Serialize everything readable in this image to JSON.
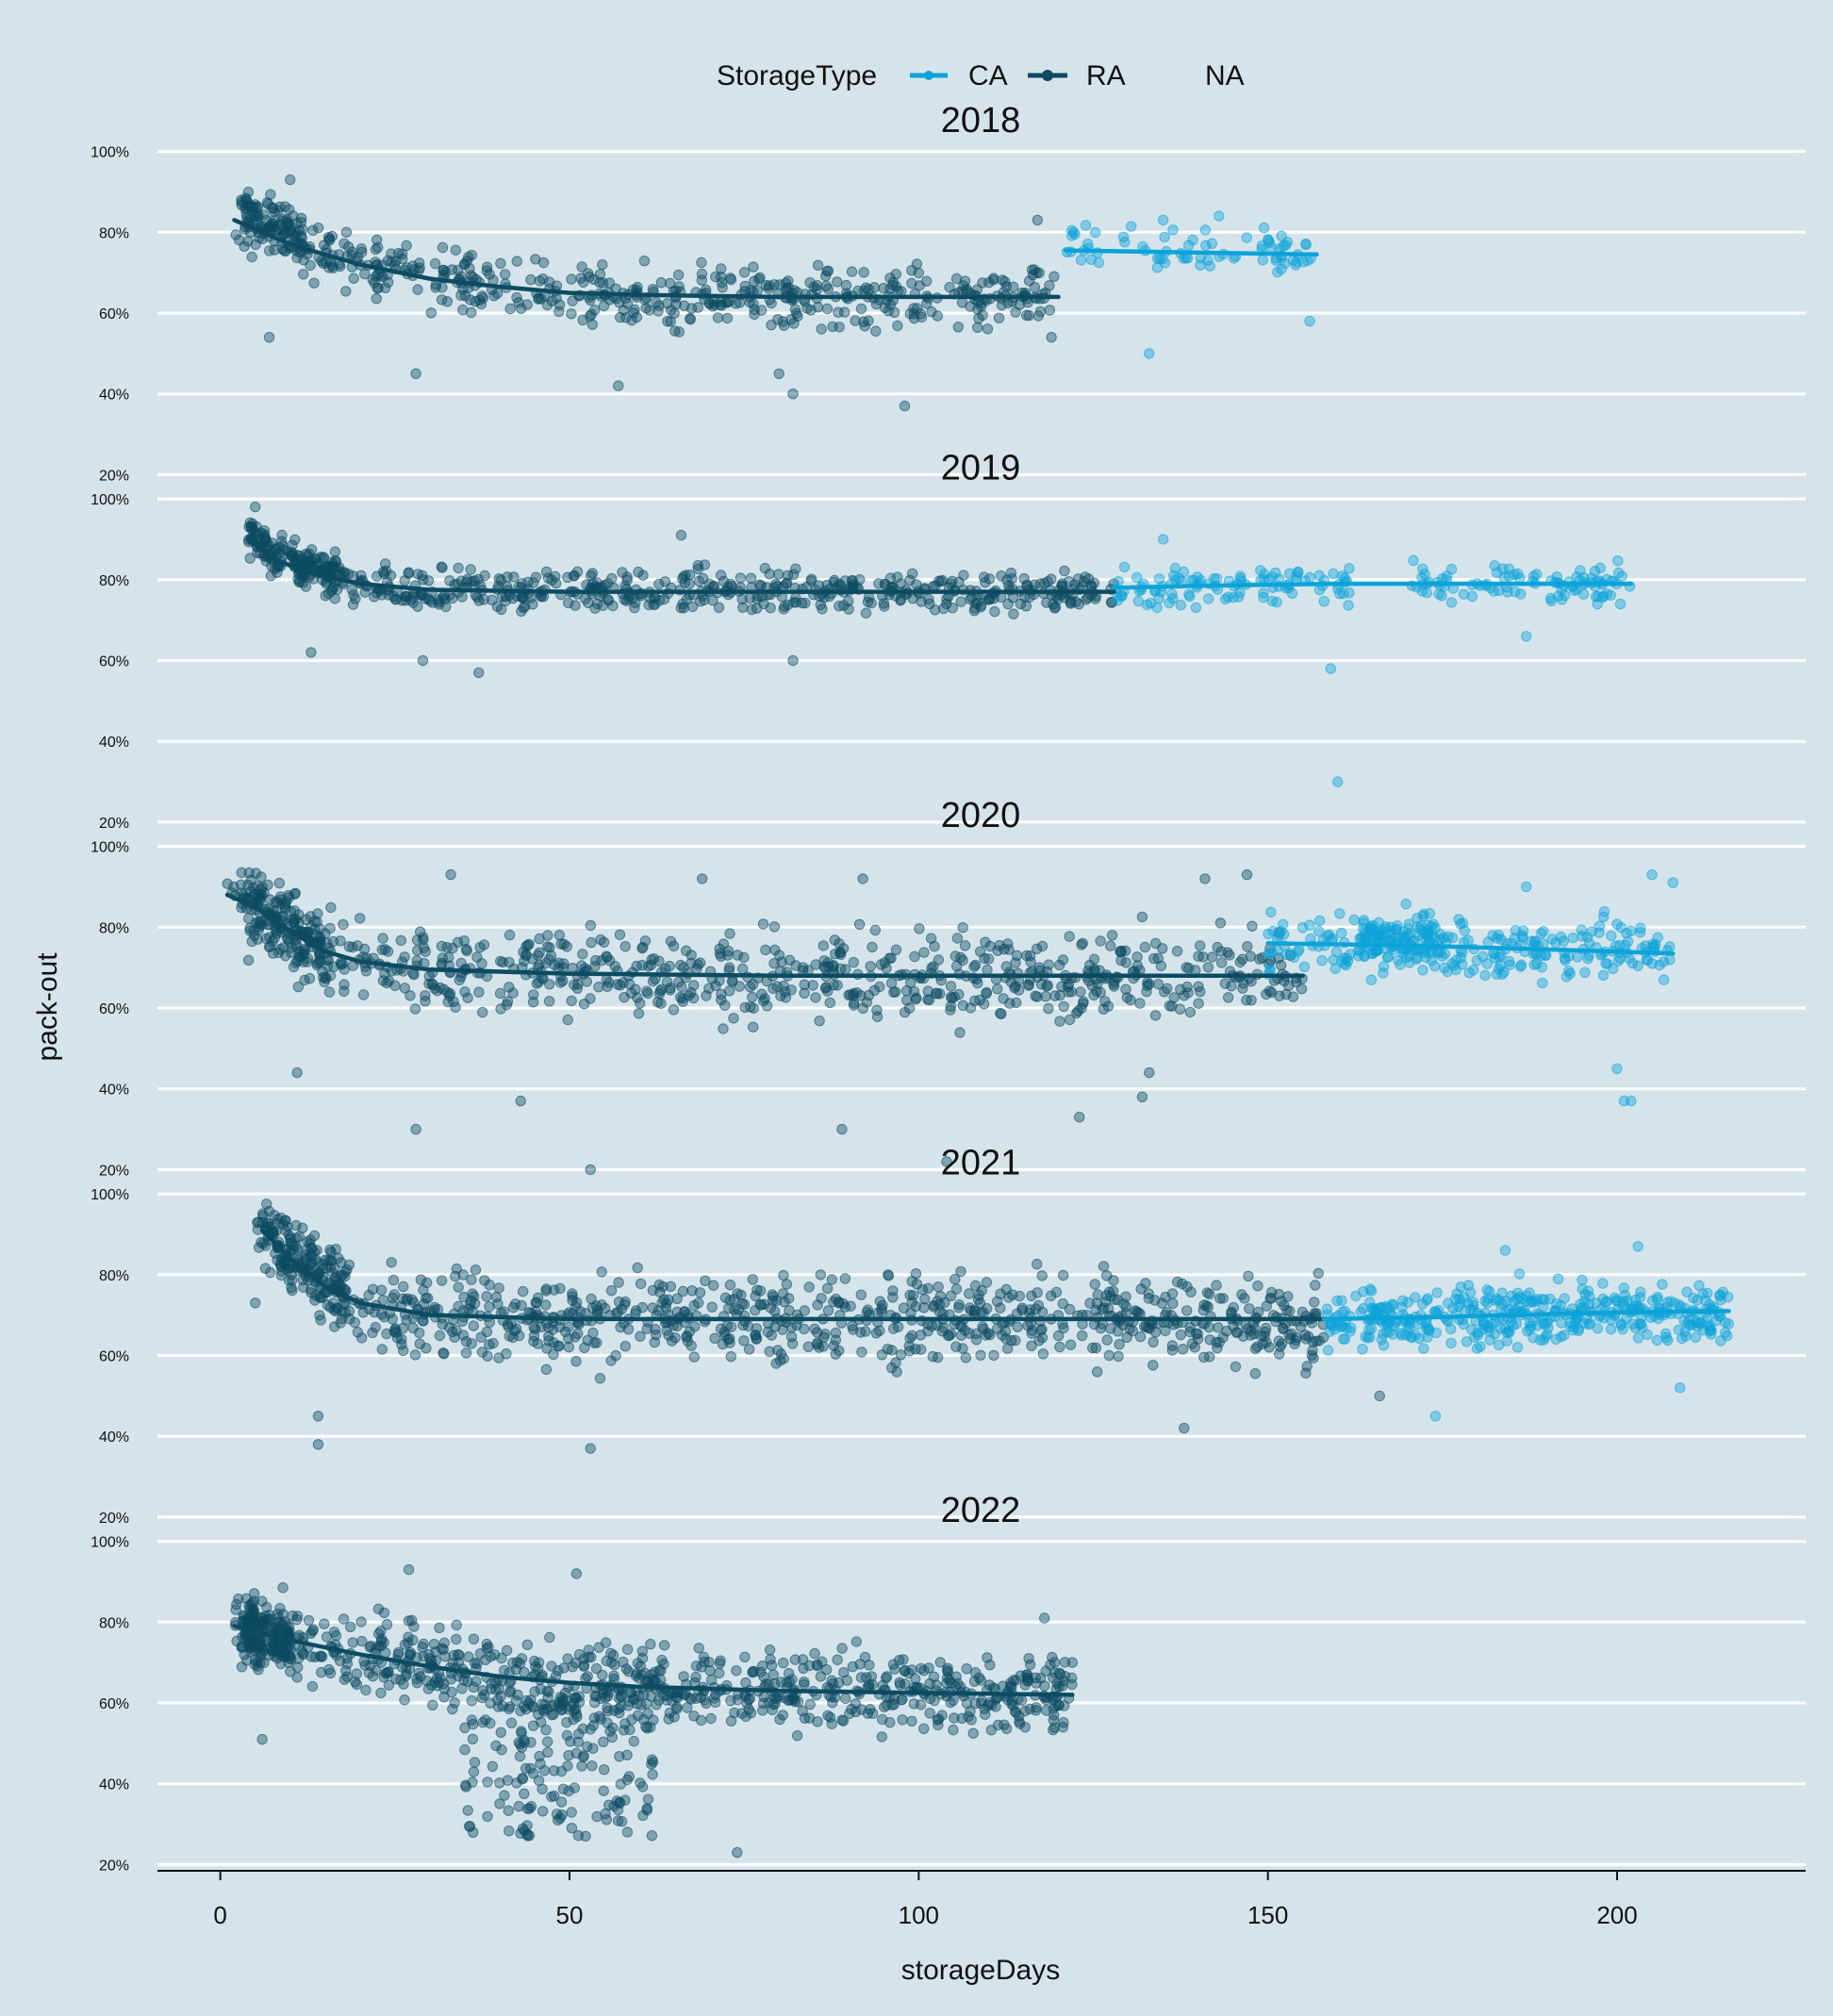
{
  "chart_data": {
    "type": "scatter",
    "legend": {
      "title": "StorageType",
      "placement": "top",
      "entries": [
        {
          "label": "CA",
          "color": "#0ba3d8"
        },
        {
          "label": "RA",
          "color": "#0c4b61"
        },
        {
          "label": "NA",
          "color": "none"
        }
      ]
    },
    "xlabel": "storageDays",
    "ylabel": "pack-out",
    "xlim": [
      -9,
      227
    ],
    "x_ticks": [
      0,
      50,
      100,
      150,
      200
    ],
    "x_tick_labels": [
      "0",
      "50",
      "100",
      "150",
      "200"
    ],
    "ylim": [
      0.18,
      1.02
    ],
    "y_ticks": [
      0.2,
      0.4,
      0.6,
      0.8,
      1.0
    ],
    "y_tick_labels": [
      "20%",
      "40%",
      "60%",
      "80%",
      "100%"
    ],
    "grid": {
      "horizontal": true,
      "vertical": false
    },
    "colors": {
      "background": "#d5e4eb",
      "grid": "#ffffff",
      "CA": "#0ba3d8",
      "RA": "#0c4b61"
    },
    "panels": [
      {
        "title": "2018",
        "series": [
          {
            "name": "RA",
            "x_range": [
              2,
              120
            ],
            "trend": [
              [
                2,
                0.83
              ],
              [
                10,
                0.77
              ],
              [
                20,
                0.72
              ],
              [
                30,
                0.685
              ],
              [
                40,
                0.665
              ],
              [
                50,
                0.65
              ],
              [
                60,
                0.645
              ],
              [
                80,
                0.64
              ],
              [
                100,
                0.64
              ],
              [
                120,
                0.64
              ]
            ],
            "scatter": {
              "n": 520,
              "spread": 0.075,
              "mode": "uniform",
              "cluster_x": [
                3,
                12
              ],
              "cluster_n": 90,
              "cluster_trend_offset": 0.03,
              "extra": [
                [
                  7,
                  0.54
                ],
                [
                  10,
                  0.93
                ],
                [
                  57,
                  0.42
                ],
                [
                  80,
                  0.45
                ],
                [
                  82,
                  0.4
                ],
                [
                  98,
                  0.37
                ],
                [
                  28,
                  0.45
                ],
                [
                  117,
                  0.83
                ],
                [
                  119,
                  0.54
                ]
              ]
            }
          },
          {
            "name": "CA",
            "x_range": [
              121,
              157
            ],
            "trend": [
              [
                121,
                0.755
              ],
              [
                157,
                0.745
              ]
            ],
            "scatter": {
              "n": 75,
              "spread": 0.06,
              "mode": "uniform",
              "extra": [
                [
                  133,
                  0.5
                ],
                [
                  143,
                  0.84
                ],
                [
                  156,
                  0.58
                ],
                [
                  135,
                  0.83
                ]
              ]
            }
          }
        ]
      },
      {
        "title": "2019",
        "series": [
          {
            "name": "RA",
            "x_range": [
              4,
              128
            ],
            "trend": [
              [
                4,
                0.9
              ],
              [
                8,
                0.85
              ],
              [
                12,
                0.82
              ],
              [
                20,
                0.79
              ],
              [
                30,
                0.775
              ],
              [
                50,
                0.77
              ],
              [
                70,
                0.77
              ],
              [
                100,
                0.77
              ],
              [
                128,
                0.77
              ]
            ],
            "scatter": {
              "n": 560,
              "spread": 0.055,
              "mode": "uniform",
              "cluster_x": [
                4,
                18
              ],
              "cluster_n": 120,
              "cluster_trend_offset": 0.02,
              "extra": [
                [
                  5,
                  0.98
                ],
                [
                  37,
                  0.57
                ],
                [
                  29,
                  0.6
                ],
                [
                  82,
                  0.6
                ],
                [
                  13,
                  0.62
                ],
                [
                  66,
                  0.91
                ]
              ]
            }
          },
          {
            "name": "CA",
            "x_range": [
              128,
              202
            ],
            "trend": [
              [
                128,
                0.78
              ],
              [
                140,
                0.785
              ],
              [
                160,
                0.79
              ],
              [
                180,
                0.79
              ],
              [
                202,
                0.79
              ]
            ],
            "scatter": {
              "n": 230,
              "spread": 0.05,
              "mode": "uniform",
              "gaps": [
                [
                  162,
                  170
                ]
              ],
              "extra": [
                [
                  160,
                  0.3
                ],
                [
                  159,
                  0.58
                ],
                [
                  135,
                  0.9
                ],
                [
                  187,
                  0.66
                ]
              ]
            }
          }
        ]
      },
      {
        "title": "2020",
        "series": [
          {
            "name": "RA",
            "x_range": [
              1,
              155
            ],
            "trend": [
              [
                1,
                0.88
              ],
              [
                5,
                0.85
              ],
              [
                10,
                0.79
              ],
              [
                15,
                0.74
              ],
              [
                20,
                0.715
              ],
              [
                30,
                0.695
              ],
              [
                50,
                0.685
              ],
              [
                80,
                0.68
              ],
              [
                120,
                0.68
              ],
              [
                155,
                0.68
              ]
            ],
            "scatter": {
              "n": 720,
              "spread": 0.11,
              "mode": "uniform",
              "cluster_x": [
                3,
                16
              ],
              "cluster_n": 150,
              "cluster_trend_offset": 0.0,
              "extra": [
                [
                  53,
                  0.2
                ],
                [
                  104,
                  0.22
                ],
                [
                  28,
                  0.3
                ],
                [
                  89,
                  0.3
                ],
                [
                  43,
                  0.37
                ],
                [
                  123,
                  0.33
                ],
                [
                  132,
                  0.38
                ],
                [
                  11,
                  0.44
                ],
                [
                  133,
                  0.44
                ],
                [
                  33,
                  0.93
                ],
                [
                  69,
                  0.92
                ],
                [
                  92,
                  0.92
                ],
                [
                  141,
                  0.92
                ],
                [
                  147,
                  0.93
                ]
              ]
            }
          },
          {
            "name": "CA",
            "x_range": [
              150,
              208
            ],
            "trend": [
              [
                150,
                0.76
              ],
              [
                170,
                0.755
              ],
              [
                190,
                0.745
              ],
              [
                208,
                0.735
              ]
            ],
            "scatter": {
              "n": 260,
              "spread": 0.08,
              "mode": "uniform",
              "cluster_x": [
                163,
                175
              ],
              "cluster_n": 80,
              "cluster_trend_offset": 0.02,
              "extra": [
                [
                  200,
                  0.45
                ],
                [
                  201,
                  0.37
                ],
                [
                  202,
                  0.37
                ],
                [
                  205,
                  0.93
                ],
                [
                  208,
                  0.91
                ],
                [
                  187,
                  0.9
                ]
              ]
            }
          }
        ]
      },
      {
        "title": "2021",
        "series": [
          {
            "name": "RA",
            "x_range": [
              5,
              158
            ],
            "trend": [
              [
                6,
                0.91
              ],
              [
                10,
                0.84
              ],
              [
                15,
                0.77
              ],
              [
                20,
                0.73
              ],
              [
                30,
                0.7
              ],
              [
                50,
                0.69
              ],
              [
                80,
                0.69
              ],
              [
                120,
                0.69
              ],
              [
                158,
                0.69
              ]
            ],
            "scatter": {
              "n": 900,
              "spread": 0.11,
              "mode": "uniform",
              "cluster_x": [
                6,
                18
              ],
              "cluster_n": 110,
              "cluster_trend_offset": 0.02,
              "extra": [
                [
                  14,
                  0.38
                ],
                [
                  53,
                  0.37
                ],
                [
                  138,
                  0.42
                ],
                [
                  14,
                  0.45
                ],
                [
                  5,
                  0.73
                ],
                [
                  166,
                  0.5
                ]
              ]
            }
          },
          {
            "name": "CA",
            "x_range": [
              158,
              216
            ],
            "trend": [
              [
                158,
                0.69
              ],
              [
                175,
                0.695
              ],
              [
                195,
                0.705
              ],
              [
                216,
                0.71
              ]
            ],
            "scatter": {
              "n": 420,
              "spread": 0.075,
              "mode": "uniform",
              "extra": [
                [
                  174,
                  0.45
                ],
                [
                  209,
                  0.52
                ],
                [
                  184,
                  0.86
                ],
                [
                  203,
                  0.87
                ]
              ]
            }
          }
        ]
      },
      {
        "title": "2022",
        "series": [
          {
            "name": "RA",
            "x_range": [
              2,
              122
            ],
            "trend": [
              [
                2,
                0.79
              ],
              [
                10,
                0.755
              ],
              [
                20,
                0.72
              ],
              [
                30,
                0.69
              ],
              [
                40,
                0.665
              ],
              [
                50,
                0.65
              ],
              [
                60,
                0.64
              ],
              [
                80,
                0.63
              ],
              [
                100,
                0.625
              ],
              [
                122,
                0.62
              ]
            ],
            "scatter": {
              "n": 820,
              "spread": 0.1,
              "mode": "uniform",
              "cluster_x": [
                3,
                10
              ],
              "cluster_n": 130,
              "cluster_trend_offset": 0.0,
              "low_cluster": {
                "x": [
                  35,
                  62
                ],
                "n": 170,
                "y": [
                  0.27,
                  0.62
                ]
              },
              "extra": [
                [
                  74,
                  0.23
                ],
                [
                  6,
                  0.51
                ],
                [
                  118,
                  0.81
                ],
                [
                  122,
                  0.7
                ],
                [
                  27,
                  0.93
                ],
                [
                  51,
                  0.92
                ]
              ]
            }
          }
        ]
      }
    ]
  }
}
